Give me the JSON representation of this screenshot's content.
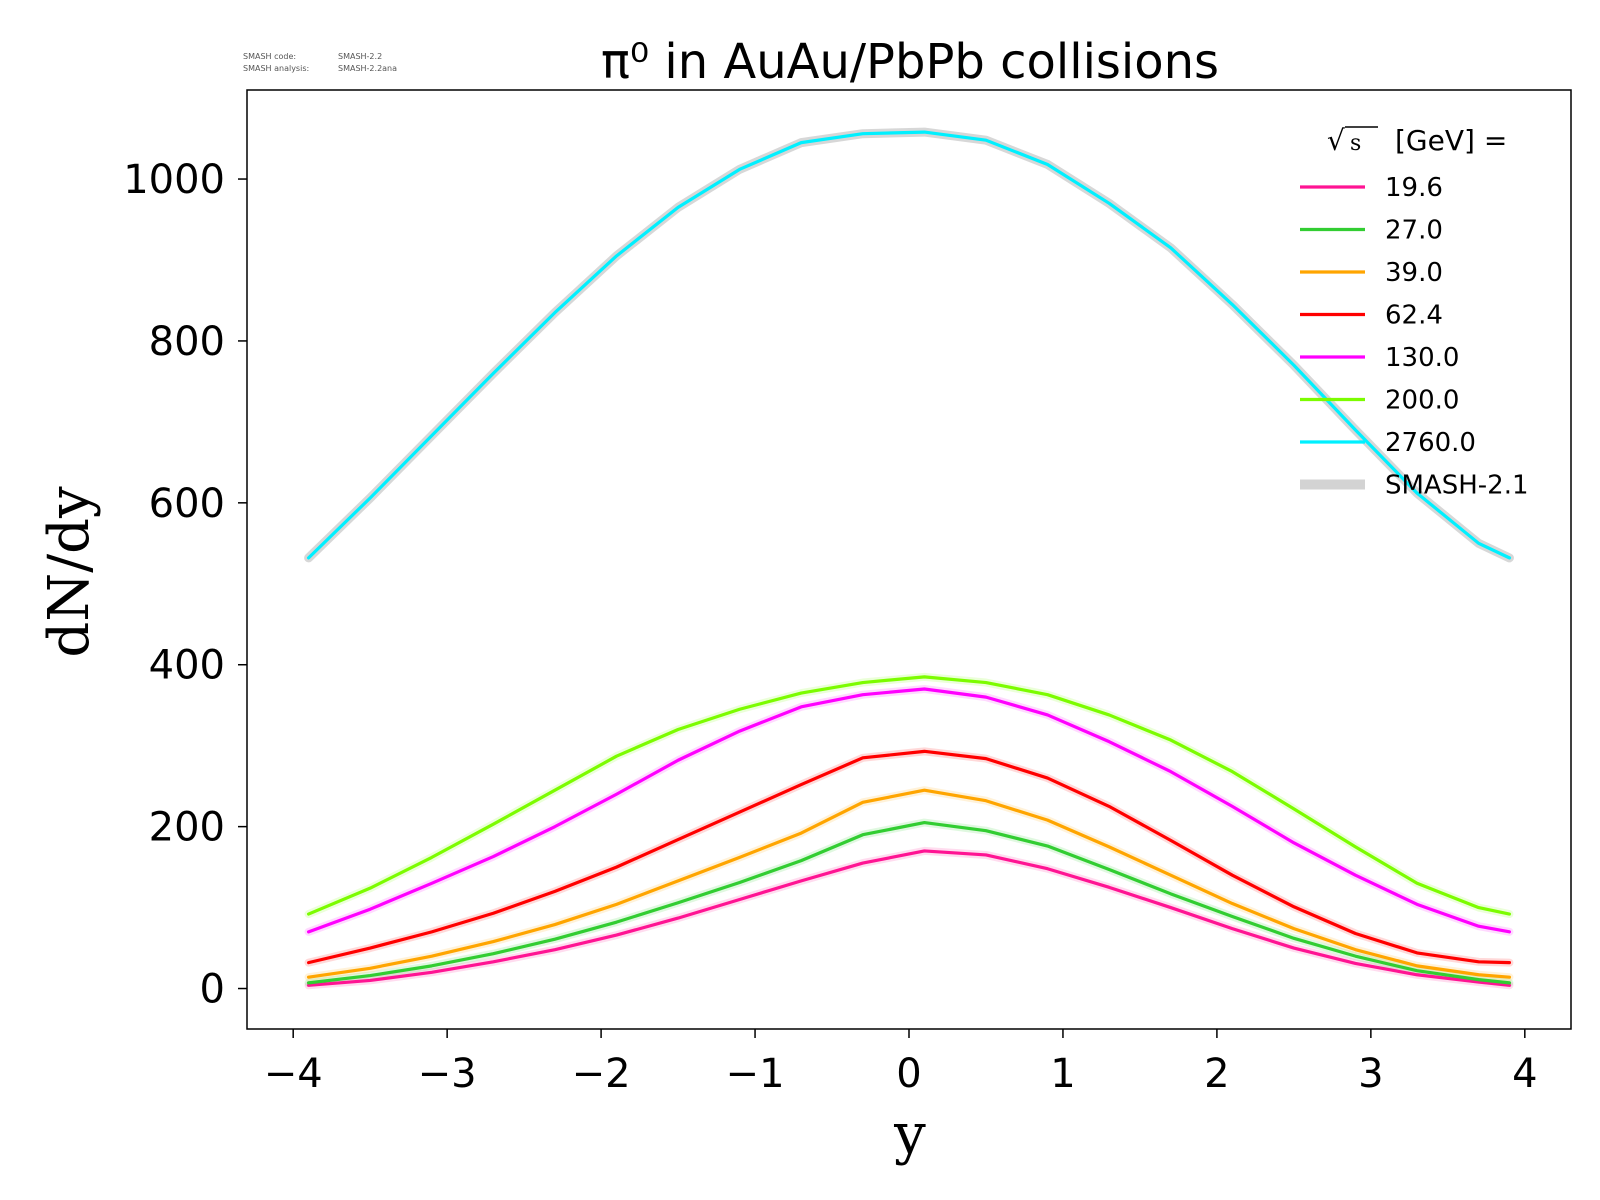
{
  "meta": {
    "line1_key": "SMASH code:",
    "line1_val": "SMASH-2.2",
    "line2_key": "SMASH analysis:",
    "line2_val": "SMASH-2.2ana"
  },
  "chart_data": {
    "type": "line",
    "title": "π⁰ in AuAu/PbPb collisions",
    "xlabel": "y",
    "ylabel": "dN/dy",
    "xlim": [
      -4.3,
      4.3
    ],
    "ylim": [
      -50,
      1110
    ],
    "xticks": [
      -4,
      -3,
      -2,
      -1,
      0,
      1,
      2,
      3,
      4
    ],
    "xtick_labels": [
      "−4",
      "−3",
      "−2",
      "−1",
      "0",
      "1",
      "2",
      "3",
      "4"
    ],
    "yticks": [
      0,
      200,
      400,
      600,
      800,
      1000
    ],
    "ytick_labels": [
      "0",
      "200",
      "400",
      "600",
      "800",
      "1000"
    ],
    "grid": false,
    "legend_position": "top-right",
    "legend_title_suffix": "[GeV] =",
    "x": [
      -3.9,
      -3.5,
      -3.1,
      -2.7,
      -2.3,
      -1.9,
      -1.5,
      -1.1,
      -0.7,
      -0.3,
      0.1,
      0.5,
      0.9,
      1.3,
      1.7,
      2.1,
      2.5,
      2.9,
      3.3,
      3.7,
      3.9
    ],
    "series": [
      {
        "name": "19.6",
        "color": "#ff1493",
        "values": [
          4,
          10,
          20,
          33,
          48,
          66,
          87,
          110,
          133,
          155,
          170,
          165,
          148,
          125,
          100,
          74,
          50,
          31,
          17,
          8,
          4
        ]
      },
      {
        "name": "27.0",
        "color": "#32cd32",
        "values": [
          7,
          16,
          28,
          43,
          61,
          82,
          106,
          131,
          158,
          190,
          205,
          195,
          176,
          147,
          117,
          89,
          62,
          40,
          22,
          11,
          7
        ]
      },
      {
        "name": "39.0",
        "color": "#ffa500",
        "values": [
          14,
          25,
          40,
          58,
          79,
          104,
          133,
          162,
          192,
          230,
          245,
          232,
          208,
          175,
          140,
          105,
          74,
          48,
          28,
          17,
          14
        ]
      },
      {
        "name": "62.4",
        "color": "#ff0000",
        "values": [
          32,
          50,
          70,
          93,
          120,
          150,
          184,
          218,
          252,
          285,
          293,
          284,
          260,
          225,
          183,
          140,
          101,
          68,
          44,
          33,
          32
        ]
      },
      {
        "name": "130.0",
        "color": "#ff00ff",
        "values": [
          70,
          98,
          130,
          163,
          200,
          240,
          282,
          318,
          348,
          363,
          370,
          360,
          338,
          305,
          268,
          225,
          180,
          140,
          104,
          77,
          70
        ]
      },
      {
        "name": "200.0",
        "color": "#7cfc00",
        "values": [
          92,
          124,
          162,
          203,
          245,
          287,
          320,
          345,
          365,
          378,
          385,
          378,
          363,
          338,
          307,
          268,
          222,
          175,
          130,
          100,
          92
        ]
      },
      {
        "name": "2760.0",
        "color": "#00f0ff",
        "values": [
          532,
          606,
          683,
          760,
          835,
          905,
          965,
          1012,
          1045,
          1056,
          1058,
          1048,
          1018,
          970,
          915,
          845,
          770,
          690,
          612,
          550,
          532
        ]
      }
    ],
    "reference": {
      "name": "SMASH-2.1",
      "color": "#d3d3d3"
    }
  }
}
